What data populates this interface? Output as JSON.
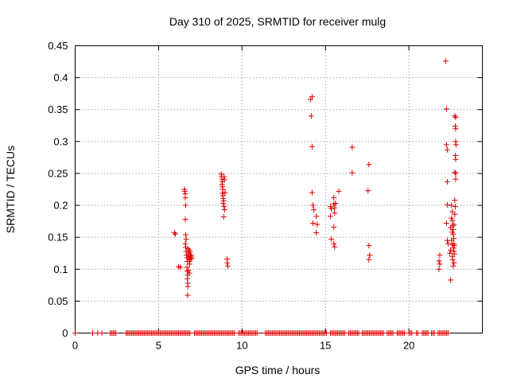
{
  "chart_data": {
    "type": "scatter",
    "title": "Day 310 of 2025, SRMTID for receiver mulg",
    "xlabel": "GPS time / hours",
    "ylabel": "SRMTID / TECUs",
    "xlim": [
      0,
      24.4
    ],
    "ylim": [
      0,
      0.45
    ],
    "xticks": [
      0,
      5,
      10,
      15,
      20
    ],
    "yticks": [
      0,
      0.05,
      0.1,
      0.15,
      0.2,
      0.25,
      0.3,
      0.35,
      0.4,
      0.45
    ],
    "grid": true,
    "marker": "+",
    "color": "#e00000",
    "series": [
      {
        "name": "SRMTID",
        "points": [
          [
            5.95,
            0.157
          ],
          [
            6.0,
            0.155
          ],
          [
            6.2,
            0.104
          ],
          [
            6.3,
            0.103
          ],
          [
            6.55,
            0.225
          ],
          [
            6.57,
            0.222
          ],
          [
            6.6,
            0.218
          ],
          [
            6.6,
            0.212
          ],
          [
            6.62,
            0.2
          ],
          [
            6.6,
            0.178
          ],
          [
            6.62,
            0.154
          ],
          [
            6.65,
            0.147
          ],
          [
            6.6,
            0.14
          ],
          [
            6.63,
            0.134
          ],
          [
            6.65,
            0.128
          ],
          [
            6.68,
            0.122
          ],
          [
            6.7,
            0.118
          ],
          [
            6.72,
            0.112
          ],
          [
            6.7,
            0.103
          ],
          [
            6.72,
            0.097
          ],
          [
            6.74,
            0.091
          ],
          [
            6.72,
            0.085
          ],
          [
            6.75,
            0.078
          ],
          [
            6.75,
            0.073
          ],
          [
            6.74,
            0.059
          ],
          [
            6.76,
            0.132
          ],
          [
            6.78,
            0.125
          ],
          [
            6.8,
            0.12
          ],
          [
            6.82,
            0.116
          ],
          [
            6.84,
            0.112
          ],
          [
            6.86,
            0.108
          ],
          [
            6.85,
            0.13
          ],
          [
            6.88,
            0.127
          ],
          [
            6.9,
            0.123
          ],
          [
            6.92,
            0.119
          ],
          [
            6.9,
            0.115
          ],
          [
            6.95,
            0.121
          ],
          [
            6.97,
            0.117
          ],
          [
            6.8,
            0.098
          ],
          [
            6.84,
            0.094
          ],
          [
            8.75,
            0.249
          ],
          [
            8.78,
            0.245
          ],
          [
            8.8,
            0.241
          ],
          [
            8.82,
            0.237
          ],
          [
            8.8,
            0.233
          ],
          [
            8.83,
            0.229
          ],
          [
            8.85,
            0.225
          ],
          [
            8.82,
            0.219
          ],
          [
            8.85,
            0.215
          ],
          [
            8.87,
            0.211
          ],
          [
            8.9,
            0.207
          ],
          [
            8.88,
            0.203
          ],
          [
            8.92,
            0.198
          ],
          [
            8.95,
            0.193
          ],
          [
            8.9,
            0.182
          ],
          [
            8.92,
            0.245
          ],
          [
            8.95,
            0.24
          ],
          [
            8.98,
            0.22
          ],
          [
            9.1,
            0.116
          ],
          [
            9.12,
            0.11
          ],
          [
            9.15,
            0.105
          ],
          [
            14.1,
            0.366
          ],
          [
            14.2,
            0.37
          ],
          [
            14.15,
            0.34
          ],
          [
            14.2,
            0.292
          ],
          [
            14.2,
            0.22
          ],
          [
            14.25,
            0.2
          ],
          [
            14.3,
            0.193
          ],
          [
            14.25,
            0.172
          ],
          [
            14.45,
            0.183
          ],
          [
            14.5,
            0.17
          ],
          [
            14.45,
            0.157
          ],
          [
            15.3,
            0.198
          ],
          [
            15.35,
            0.195
          ],
          [
            15.3,
            0.183
          ],
          [
            15.35,
            0.147
          ],
          [
            15.5,
            0.212
          ],
          [
            15.5,
            0.202
          ],
          [
            15.55,
            0.196
          ],
          [
            15.6,
            0.203
          ],
          [
            15.55,
            0.188
          ],
          [
            15.5,
            0.166
          ],
          [
            15.5,
            0.14
          ],
          [
            15.55,
            0.135
          ],
          [
            15.8,
            0.222
          ],
          [
            16.6,
            0.291
          ],
          [
            16.6,
            0.251
          ],
          [
            17.6,
            0.264
          ],
          [
            17.55,
            0.223
          ],
          [
            17.6,
            0.137
          ],
          [
            17.65,
            0.122
          ],
          [
            17.6,
            0.115
          ],
          [
            22.2,
            0.426
          ],
          [
            22.25,
            0.351
          ],
          [
            22.3,
            0.287
          ],
          [
            22.25,
            0.295
          ],
          [
            22.3,
            0.237
          ],
          [
            22.3,
            0.201
          ],
          [
            22.25,
            0.172
          ],
          [
            22.3,
            0.145
          ],
          [
            22.35,
            0.14
          ],
          [
            21.85,
            0.122
          ],
          [
            21.8,
            0.113
          ],
          [
            21.85,
            0.108
          ],
          [
            21.8,
            0.1
          ],
          [
            22.5,
            0.083
          ],
          [
            22.55,
            0.2
          ],
          [
            22.6,
            0.19
          ],
          [
            22.55,
            0.18
          ],
          [
            22.6,
            0.176
          ],
          [
            22.62,
            0.168
          ],
          [
            22.65,
            0.162
          ],
          [
            22.6,
            0.158
          ],
          [
            22.7,
            0.17
          ],
          [
            22.65,
            0.155
          ],
          [
            22.68,
            0.148
          ],
          [
            22.7,
            0.14
          ],
          [
            22.72,
            0.137
          ],
          [
            22.68,
            0.133
          ],
          [
            22.7,
            0.128
          ],
          [
            22.72,
            0.124
          ],
          [
            22.6,
            0.12
          ],
          [
            22.62,
            0.115
          ],
          [
            22.7,
            0.11
          ],
          [
            22.65,
            0.105
          ],
          [
            22.75,
            0.34
          ],
          [
            22.8,
            0.338
          ],
          [
            22.78,
            0.324
          ],
          [
            22.8,
            0.32
          ],
          [
            22.8,
            0.3
          ],
          [
            22.82,
            0.295
          ],
          [
            22.78,
            0.278
          ],
          [
            22.8,
            0.272
          ],
          [
            22.75,
            0.252
          ],
          [
            22.8,
            0.25
          ],
          [
            22.8,
            0.241
          ],
          [
            22.75,
            0.208
          ],
          [
            22.78,
            0.198
          ],
          [
            22.75,
            0.186
          ],
          [
            22.5,
            0.165
          ],
          [
            22.55,
            0.145
          ],
          [
            22.6,
            0.138
          ],
          [
            22.45,
            0.125
          ],
          [
            22.5,
            0.13
          ]
        ],
        "zero_spans": [
          [
            0,
            0
          ],
          [
            1.05,
            1.1
          ],
          [
            1.35,
            1.4
          ],
          [
            1.6,
            1.65
          ],
          [
            2.1,
            2.45
          ],
          [
            3.05,
            6.95
          ],
          [
            7.15,
            9.6
          ],
          [
            9.8,
            10.95
          ],
          [
            11.4,
            15.1
          ],
          [
            15.3,
            16.2
          ],
          [
            16.4,
            17.0
          ],
          [
            17.2,
            18.5
          ],
          [
            18.7,
            19.05
          ],
          [
            19.3,
            19.75
          ],
          [
            20.0,
            20.25
          ],
          [
            20.45,
            20.6
          ],
          [
            20.8,
            21.2
          ],
          [
            21.35,
            21.55
          ],
          [
            21.75,
            22.4
          ]
        ],
        "zero_step": 0.085
      }
    ]
  }
}
